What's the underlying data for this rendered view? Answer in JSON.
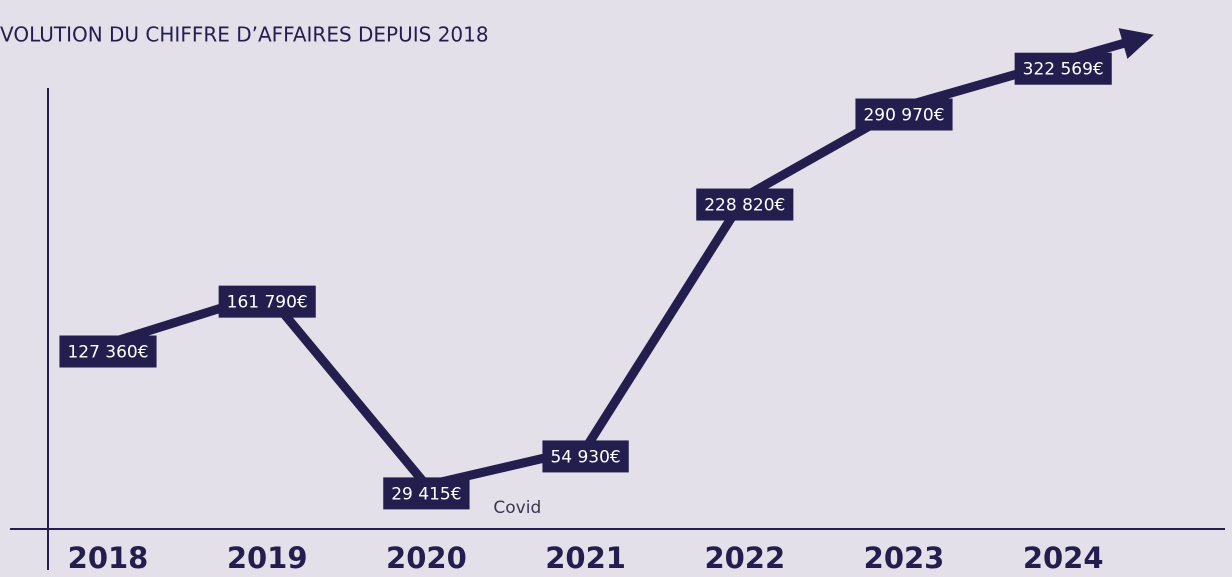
{
  "chart_data": {
    "type": "line",
    "title": "VOLUTION DU CHIFFRE D’AFFAIRES DEPUIS 2018",
    "categories": [
      "2018",
      "2019",
      "2020",
      "2021",
      "2022",
      "2023",
      "2024"
    ],
    "series": [
      {
        "name": "Chiffre d'affaires",
        "color": "#231e4d",
        "values": [
          127360,
          161790,
          29415,
          54930,
          228820,
          290970,
          322569
        ],
        "value_labels": [
          "127 360€",
          "161 790€",
          "29 415€",
          "54 930€",
          "228 820€",
          "290 970€",
          "322 569€"
        ]
      }
    ],
    "annotation": "Covid",
    "ylim": [
      0,
      350000
    ]
  }
}
